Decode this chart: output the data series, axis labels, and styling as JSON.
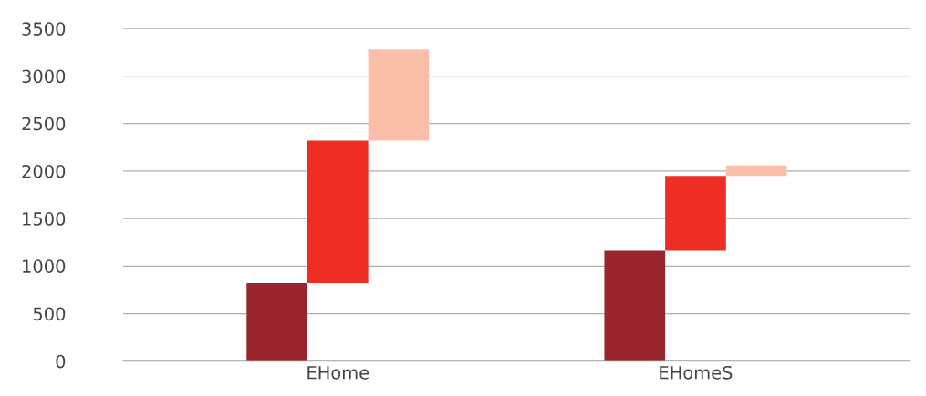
{
  "chart_data": {
    "type": "bar",
    "categories": [
      "EHome",
      "EHomeS"
    ],
    "series": [
      {
        "color": "#98252b",
        "values": [
          820,
          1160
        ],
        "base": [
          0,
          0
        ]
      },
      {
        "color": "#ee2e24",
        "values": [
          1500,
          790
        ],
        "base": [
          820,
          1160
        ]
      },
      {
        "color": "#fbbfa9",
        "values": [
          960,
          110
        ],
        "base": [
          2320,
          1950
        ]
      }
    ],
    "ylim": [
      0,
      3500
    ],
    "yticks": [
      0,
      500,
      1000,
      1500,
      2000,
      2500,
      3000,
      3500
    ],
    "grid": "y"
  }
}
